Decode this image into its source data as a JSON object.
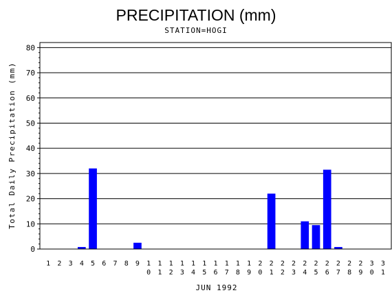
{
  "chart_data": {
    "type": "bar",
    "title": "PRECIPITATION (mm)",
    "subtitle": "STATION=HOGI",
    "xlabel": "JUN 1992",
    "ylabel": "Total Daily Precipitation (mm)",
    "ylim": [
      0,
      82
    ],
    "yticks": [
      0,
      10,
      20,
      30,
      40,
      50,
      60,
      70,
      80
    ],
    "grid": true,
    "bar_color": "#0000ff",
    "categories": [
      "1",
      "2",
      "3",
      "4",
      "5",
      "6",
      "7",
      "8",
      "9",
      "10",
      "11",
      "12",
      "13",
      "14",
      "15",
      "16",
      "17",
      "18",
      "19",
      "20",
      "21",
      "22",
      "23",
      "24",
      "25",
      "26",
      "27",
      "28",
      "29",
      "30",
      "31"
    ],
    "values": [
      0,
      0,
      0,
      0.8,
      32,
      0,
      0,
      0,
      2.5,
      0,
      0,
      0,
      0,
      0,
      0,
      0,
      0,
      0,
      0,
      0,
      22,
      0,
      0,
      11,
      9.5,
      31.5,
      0.8,
      0,
      0,
      0,
      0
    ]
  }
}
